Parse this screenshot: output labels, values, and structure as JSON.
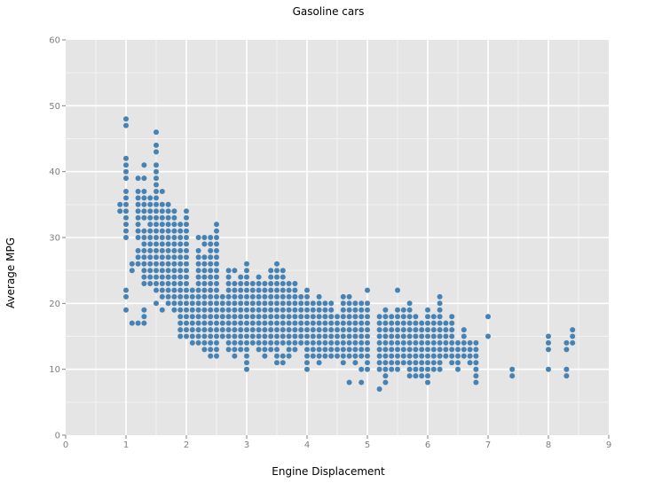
{
  "chart_data": {
    "type": "scatter",
    "title": "Gasoline cars",
    "xlabel": "Engine Displacement",
    "ylabel": "Average MPG",
    "xlim": [
      0,
      9
    ],
    "ylim": [
      0,
      60
    ],
    "xticks": [
      "0",
      "1",
      "2",
      "3",
      "4",
      "5",
      "6",
      "7",
      "8",
      "9"
    ],
    "yticks": [
      "0",
      "10",
      "20",
      "30",
      "40",
      "50",
      "60"
    ],
    "grid": true,
    "legend": null,
    "point_color": "#4682B4",
    "panel_background": "#E5E5E5",
    "grid_color": "#FFFFFF",
    "columns": [
      {
        "x": 0.9,
        "y": [
          35,
          34
        ]
      },
      {
        "x": 1.0,
        "y": [
          48,
          47,
          42,
          41,
          40,
          39,
          37,
          36,
          35,
          34,
          33,
          32,
          31,
          30,
          22,
          21,
          19
        ]
      },
      {
        "x": 1.1,
        "y": [
          26,
          25,
          17
        ]
      },
      {
        "x": 1.2,
        "y": [
          39,
          37,
          36,
          35,
          34,
          33,
          32,
          31,
          30,
          28,
          27,
          26,
          17
        ]
      },
      {
        "x": 1.3,
        "y": [
          41,
          39,
          37,
          36,
          35,
          34,
          33,
          31,
          30,
          29,
          28,
          27,
          26,
          25,
          24,
          23,
          19,
          18,
          17
        ]
      },
      {
        "x": 1.4,
        "y": [
          36,
          35,
          34,
          33,
          32,
          31,
          30,
          29,
          28,
          27,
          26,
          25,
          24,
          23
        ]
      },
      {
        "x": 1.5,
        "y": [
          46,
          44,
          43,
          41,
          40,
          39,
          38,
          37,
          36,
          35,
          34,
          33,
          32,
          31,
          30,
          29,
          28,
          27,
          26,
          25,
          24,
          23,
          22,
          20
        ]
      },
      {
        "x": 1.6,
        "y": [
          37,
          35,
          34,
          33,
          32,
          31,
          30,
          29,
          28,
          27,
          26,
          25,
          24,
          23,
          22,
          21,
          19
        ]
      },
      {
        "x": 1.7,
        "y": [
          35,
          34,
          33,
          32,
          31,
          30,
          29,
          28,
          27,
          26,
          25,
          24,
          23,
          22,
          21,
          20
        ]
      },
      {
        "x": 1.8,
        "y": [
          34,
          33,
          32,
          31,
          30,
          29,
          28,
          27,
          26,
          25,
          24,
          23,
          22,
          21,
          20,
          19
        ]
      },
      {
        "x": 1.9,
        "y": [
          32,
          31,
          30,
          29,
          28,
          27,
          26,
          25,
          24,
          23,
          22,
          21,
          20,
          19,
          18,
          17,
          16,
          15
        ]
      },
      {
        "x": 2.0,
        "y": [
          34,
          33,
          32,
          31,
          30,
          29,
          28,
          27,
          26,
          25,
          24,
          23,
          22,
          21,
          20,
          19,
          18,
          17,
          16,
          15
        ]
      },
      {
        "x": 2.1,
        "y": [
          22,
          21,
          20,
          19,
          18,
          17,
          16,
          15,
          14
        ]
      },
      {
        "x": 2.2,
        "y": [
          30,
          28,
          27,
          26,
          25,
          24,
          23,
          22,
          21,
          20,
          19,
          18,
          17,
          16,
          15,
          14
        ]
      },
      {
        "x": 2.3,
        "y": [
          30,
          29,
          27,
          26,
          25,
          24,
          23,
          22,
          21,
          20,
          19,
          18,
          17,
          16,
          15,
          14,
          13
        ]
      },
      {
        "x": 2.4,
        "y": [
          30,
          29,
          28,
          27,
          26,
          25,
          24,
          23,
          22,
          21,
          20,
          19,
          18,
          17,
          16,
          15,
          14,
          13,
          12
        ]
      },
      {
        "x": 2.5,
        "y": [
          32,
          31,
          30,
          29,
          28,
          27,
          26,
          25,
          24,
          23,
          22,
          21,
          20,
          19,
          18,
          17,
          16,
          15,
          14,
          13,
          12
        ]
      },
      {
        "x": 2.6,
        "y": [
          21,
          20,
          19,
          18,
          17,
          16,
          15
        ]
      },
      {
        "x": 2.7,
        "y": [
          25,
          24,
          23,
          22,
          21,
          20,
          19,
          18,
          17,
          16,
          15,
          14,
          13
        ]
      },
      {
        "x": 2.8,
        "y": [
          25,
          23,
          22,
          21,
          20,
          19,
          18,
          17,
          16,
          15,
          14,
          13,
          12
        ]
      },
      {
        "x": 2.9,
        "y": [
          24,
          23,
          22,
          21,
          20,
          19,
          18,
          17,
          16,
          15,
          14,
          13
        ]
      },
      {
        "x": 3.0,
        "y": [
          26,
          25,
          24,
          23,
          22,
          21,
          20,
          19,
          18,
          17,
          16,
          15,
          14,
          13,
          12,
          11,
          10
        ]
      },
      {
        "x": 3.1,
        "y": [
          23,
          22,
          21,
          20,
          19,
          18,
          17,
          16,
          15,
          14
        ]
      },
      {
        "x": 3.2,
        "y": [
          24,
          23,
          22,
          21,
          20,
          19,
          18,
          17,
          16,
          15,
          14,
          13
        ]
      },
      {
        "x": 3.3,
        "y": [
          23,
          22,
          21,
          20,
          19,
          18,
          17,
          16,
          15,
          14,
          13,
          12
        ]
      },
      {
        "x": 3.4,
        "y": [
          25,
          24,
          23,
          22,
          21,
          20,
          19,
          18,
          17,
          16,
          15,
          14,
          13
        ]
      },
      {
        "x": 3.5,
        "y": [
          26,
          25,
          24,
          23,
          22,
          21,
          20,
          19,
          18,
          17,
          16,
          15,
          14,
          13,
          12,
          11
        ]
      },
      {
        "x": 3.6,
        "y": [
          25,
          24,
          23,
          22,
          21,
          20,
          19,
          18,
          17,
          16,
          15,
          14,
          12,
          11
        ]
      },
      {
        "x": 3.7,
        "y": [
          23,
          22,
          21,
          20,
          19,
          18,
          17,
          16,
          15,
          14,
          13,
          12
        ]
      },
      {
        "x": 3.8,
        "y": [
          23,
          22,
          21,
          20,
          19,
          18,
          17,
          16,
          15,
          14,
          13
        ]
      },
      {
        "x": 3.9,
        "y": [
          21,
          20,
          19,
          18,
          17,
          16,
          15,
          14
        ]
      },
      {
        "x": 4.0,
        "y": [
          22,
          21,
          20,
          19,
          18,
          17,
          16,
          15,
          14,
          13,
          12,
          11,
          10
        ]
      },
      {
        "x": 4.1,
        "y": [
          20,
          19,
          18,
          17,
          16,
          15,
          14,
          13,
          12
        ]
      },
      {
        "x": 4.2,
        "y": [
          21,
          20,
          19,
          18,
          17,
          16,
          15,
          14,
          13,
          12,
          11
        ]
      },
      {
        "x": 4.3,
        "y": [
          20,
          19,
          18,
          17,
          16,
          15,
          14,
          13,
          12
        ]
      },
      {
        "x": 4.4,
        "y": [
          20,
          19,
          18,
          17,
          16,
          15,
          14,
          13,
          12
        ]
      },
      {
        "x": 4.5,
        "y": [
          18,
          17,
          16,
          15,
          14,
          13,
          12
        ]
      },
      {
        "x": 4.6,
        "y": [
          21,
          20,
          19,
          18,
          17,
          16,
          15,
          14,
          13,
          12,
          11
        ]
      },
      {
        "x": 4.7,
        "y": [
          21,
          20,
          19,
          18,
          17,
          16,
          15,
          14,
          13,
          12,
          8
        ]
      },
      {
        "x": 4.8,
        "y": [
          20,
          19,
          18,
          17,
          16,
          15,
          14,
          13,
          12,
          11
        ]
      },
      {
        "x": 4.9,
        "y": [
          20,
          19,
          18,
          17,
          16,
          15,
          14,
          13,
          12,
          10,
          8
        ]
      },
      {
        "x": 5.0,
        "y": [
          22,
          20,
          19,
          18,
          17,
          16,
          15,
          14,
          13,
          12,
          11,
          10
        ]
      },
      {
        "x": 5.2,
        "y": [
          18,
          17,
          16,
          15,
          14,
          13,
          12,
          11,
          10,
          7
        ]
      },
      {
        "x": 5.3,
        "y": [
          19,
          18,
          17,
          16,
          15,
          14,
          13,
          12,
          11,
          10,
          9,
          8
        ]
      },
      {
        "x": 5.4,
        "y": [
          18,
          17,
          16,
          15,
          14,
          13,
          12,
          11,
          10
        ]
      },
      {
        "x": 5.5,
        "y": [
          22,
          19,
          18,
          17,
          16,
          15,
          14,
          13,
          12,
          11,
          10
        ]
      },
      {
        "x": 5.6,
        "y": [
          19,
          18,
          17,
          16,
          15,
          14,
          13,
          12,
          11
        ]
      },
      {
        "x": 5.7,
        "y": [
          20,
          19,
          18,
          17,
          16,
          15,
          14,
          13,
          12,
          11,
          10,
          9
        ]
      },
      {
        "x": 5.8,
        "y": [
          18,
          17,
          16,
          15,
          14,
          13,
          12,
          11,
          10,
          9
        ]
      },
      {
        "x": 5.9,
        "y": [
          17,
          16,
          15,
          14,
          13,
          12,
          11,
          10,
          9
        ]
      },
      {
        "x": 6.0,
        "y": [
          19,
          18,
          17,
          16,
          15,
          14,
          13,
          12,
          11,
          10,
          9,
          8
        ]
      },
      {
        "x": 6.1,
        "y": [
          18,
          17,
          16,
          15,
          14,
          13,
          12,
          11,
          10
        ]
      },
      {
        "x": 6.2,
        "y": [
          21,
          20,
          19,
          18,
          17,
          16,
          15,
          14,
          13,
          12,
          11,
          10
        ]
      },
      {
        "x": 6.3,
        "y": [
          17,
          16,
          15,
          14,
          13,
          12
        ]
      },
      {
        "x": 6.4,
        "y": [
          18,
          17,
          16,
          15,
          14,
          13,
          12,
          11
        ]
      },
      {
        "x": 6.5,
        "y": [
          14,
          13,
          12,
          11,
          10
        ]
      },
      {
        "x": 6.6,
        "y": [
          16,
          15,
          14,
          13,
          12
        ]
      },
      {
        "x": 6.7,
        "y": [
          14,
          13,
          12,
          11
        ]
      },
      {
        "x": 6.8,
        "y": [
          14,
          13,
          12,
          11,
          10,
          9,
          8
        ]
      },
      {
        "x": 7.0,
        "y": [
          18,
          15
        ]
      },
      {
        "x": 7.4,
        "y": [
          10,
          9
        ]
      },
      {
        "x": 8.0,
        "y": [
          15,
          14,
          13,
          10
        ]
      },
      {
        "x": 8.3,
        "y": [
          14,
          13,
          10,
          9
        ]
      },
      {
        "x": 8.4,
        "y": [
          16,
          15,
          14
        ]
      }
    ]
  }
}
